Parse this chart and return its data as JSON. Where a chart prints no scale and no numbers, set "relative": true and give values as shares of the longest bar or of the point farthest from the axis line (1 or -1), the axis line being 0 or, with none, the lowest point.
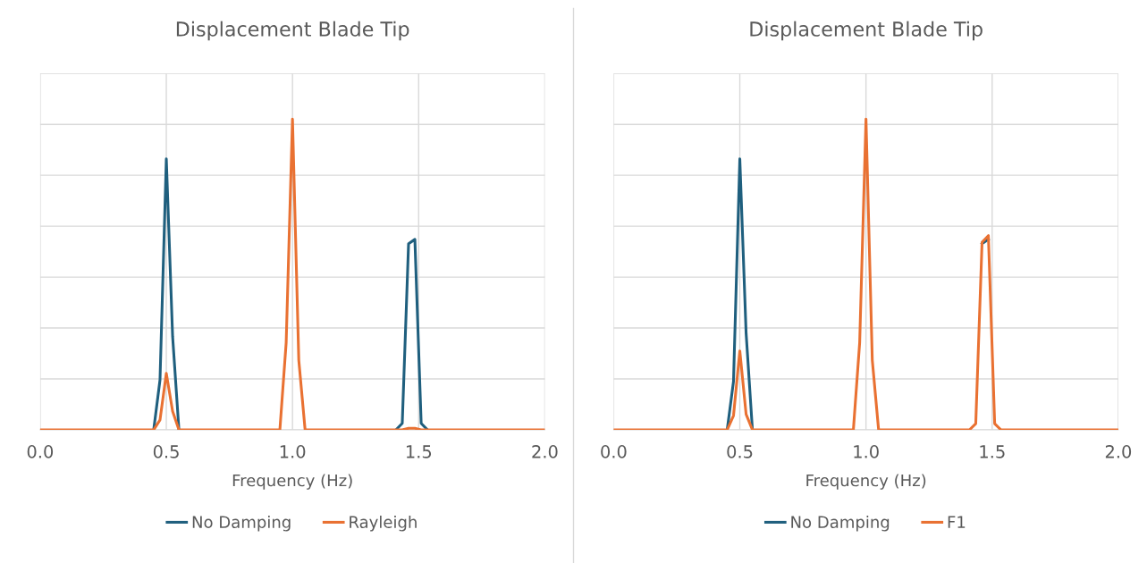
{
  "chart_data": [
    {
      "type": "line",
      "title": "Displacement Blade Tip",
      "xlabel": "Frequency (Hz)",
      "relative": true,
      "xlim": [
        0,
        2
      ],
      "xticks": [
        {
          "value": 0,
          "label": "0.0"
        },
        {
          "value": 0.5,
          "label": "0.5"
        },
        {
          "value": 1,
          "label": "1.0"
        },
        {
          "value": 1.5,
          "label": "1.5"
        },
        {
          "value": 2,
          "label": "2.0"
        }
      ],
      "tick_labels": "x",
      "grid": true,
      "legend": "bottom",
      "marker": "none",
      "line_style": "solid",
      "series": [
        {
          "name": "No Damping",
          "color": "#1f5f7e",
          "x": [
            0.45,
            0.475,
            0.5,
            0.525,
            0.55,
            null,
            1.41,
            1.435,
            1.46,
            1.485,
            1.51,
            1.535
          ],
          "values": [
            0,
            0.161,
            0.872,
            0.3,
            0,
            null,
            0,
            0.021,
            0.599,
            0.613,
            0.021,
            0
          ]
        },
        {
          "name": "Rayleigh",
          "color": "#e97132",
          "x": [
            0,
            0.45,
            0.475,
            0.5,
            0.525,
            0.55,
            0.95,
            0.975,
            1.0,
            1.025,
            1.05,
            1.41,
            1.435,
            1.46,
            1.485,
            1.51,
            1.535,
            2.0
          ],
          "values": [
            0,
            0,
            0.032,
            0.182,
            0.06,
            0,
            0,
            0.281,
            1,
            0.224,
            0,
            0,
            0,
            0.005,
            0.005,
            0,
            0,
            0
          ]
        }
      ]
    },
    {
      "type": "line",
      "title": "Displacement Blade Tip",
      "xlabel": "Frequency (Hz)",
      "relative": true,
      "xlim": [
        0,
        2
      ],
      "xticks": [
        {
          "value": 0,
          "label": "0.0"
        },
        {
          "value": 0.5,
          "label": "0.5"
        },
        {
          "value": 1,
          "label": "1.0"
        },
        {
          "value": 1.5,
          "label": "1.5"
        },
        {
          "value": 2,
          "label": "2.0"
        }
      ],
      "tick_labels": "x",
      "grid": true,
      "legend": "bottom",
      "marker": "none",
      "line_style": "solid",
      "series": [
        {
          "name": "No Damping",
          "color": "#1f5f7e",
          "x": [
            0.45,
            0.475,
            0.5,
            0.525,
            0.55,
            null,
            1.46,
            1.485
          ],
          "values": [
            0,
            0.156,
            0.872,
            0.31,
            0,
            null,
            0.599,
            0.613
          ]
        },
        {
          "name": "F1",
          "color": "#e97132",
          "x": [
            0,
            0.45,
            0.475,
            0.5,
            0.525,
            0.55,
            0.95,
            0.975,
            1.0,
            1.025,
            1.05,
            1.41,
            1.435,
            1.46,
            1.485,
            1.51,
            1.535,
            2.0
          ],
          "values": [
            0,
            0,
            0.046,
            0.254,
            0.05,
            0,
            0,
            0.281,
            1,
            0.224,
            0,
            0,
            0.02,
            0.604,
            0.625,
            0.02,
            0,
            0
          ]
        }
      ]
    }
  ]
}
